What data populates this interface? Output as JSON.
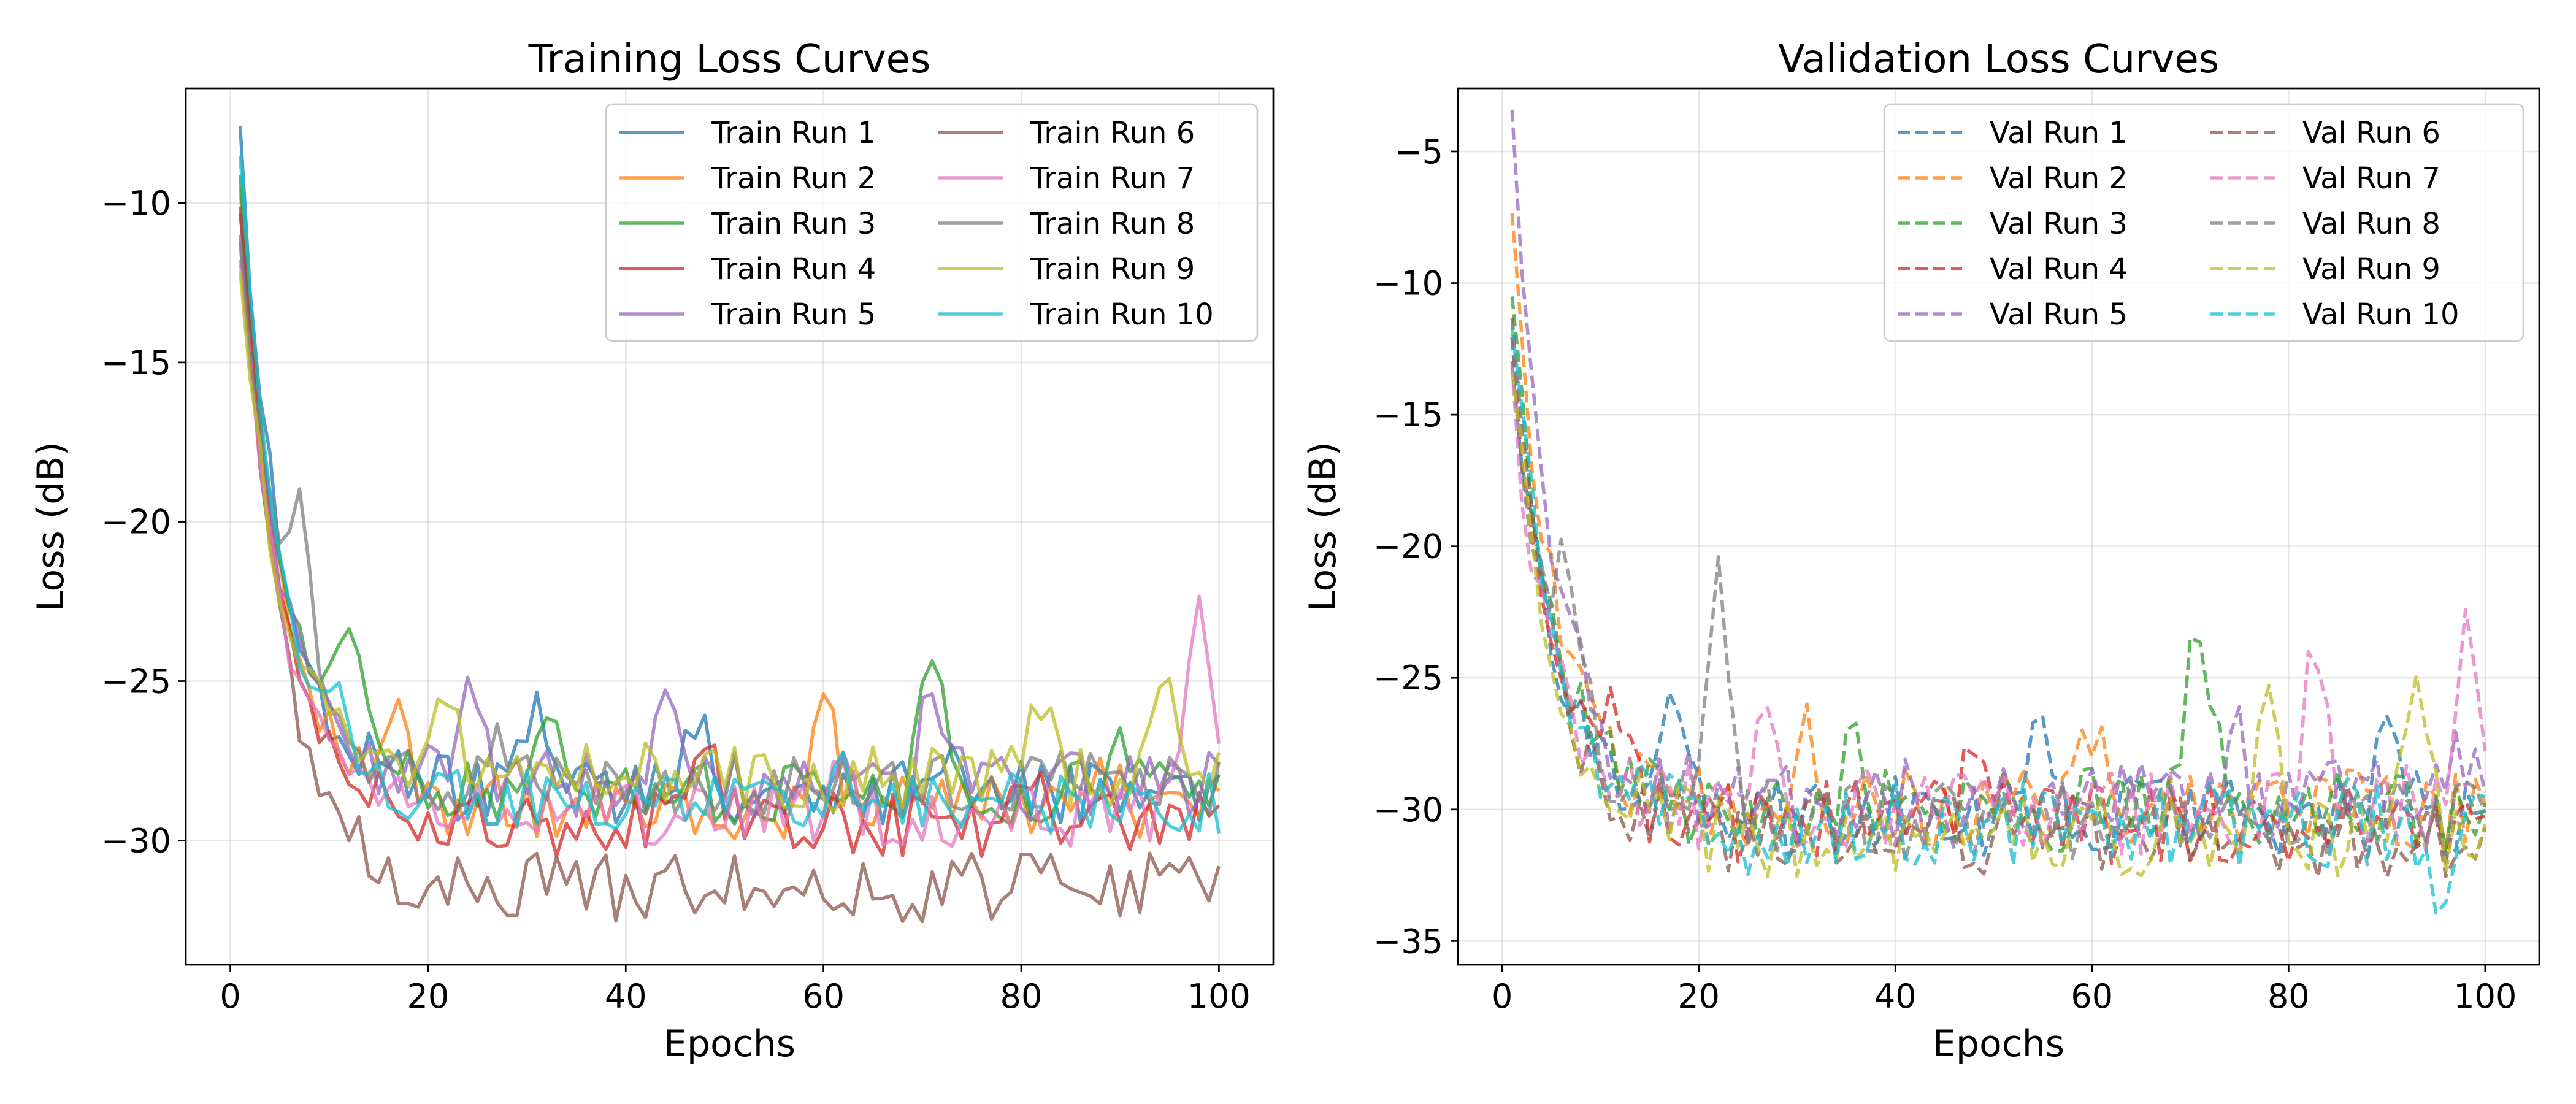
{
  "chart_data": [
    {
      "type": "line",
      "title": "Training Loss Curves",
      "xlabel": "Epochs",
      "ylabel": "Loss (dB)",
      "xlim": [
        -4.5,
        105.5
      ],
      "ylim": [
        -33.9,
        -6.4
      ],
      "xticks": [
        0,
        20,
        40,
        60,
        80,
        100
      ],
      "yticks": [
        -30,
        -25,
        -20,
        -15,
        -10
      ],
      "xtick_labels": [
        "0",
        "20",
        "40",
        "60",
        "80",
        "100"
      ],
      "ytick_labels": [
        "−30",
        "−25",
        "−20",
        "−15",
        "−10"
      ],
      "grid": true,
      "legend_location": "upper right",
      "legend_columns": 2,
      "line_style": "solid",
      "series": [
        {
          "name": "Train Run 1",
          "color": "#1f77b4",
          "start": -8,
          "end": -28.5,
          "noise": 1.0,
          "bumps": [
            [
              31,
              2.5
            ],
            [
              47,
              2.0
            ],
            [
              73,
              2.0
            ]
          ]
        },
        {
          "name": "Train Run 2",
          "color": "#ff7f0e",
          "start": -10,
          "end": -29.0,
          "noise": 1.0,
          "bumps": [
            [
              17,
              2.5
            ],
            [
              60,
              3.5
            ],
            [
              88,
              1.5
            ]
          ]
        },
        {
          "name": "Train Run 3",
          "color": "#2ca02c",
          "start": -9.7,
          "end": -28.5,
          "noise": 1.0,
          "bumps": [
            [
              12,
              4.0
            ],
            [
              32,
              3.0
            ],
            [
              71,
              4.0
            ],
            [
              90,
              1.5
            ]
          ]
        },
        {
          "name": "Train Run 4",
          "color": "#d62728",
          "start": -9.8,
          "end": -29.5,
          "noise": 1.0,
          "bumps": [
            [
              48,
              2.5
            ],
            [
              81,
              2.0
            ]
          ]
        },
        {
          "name": "Train Run 5",
          "color": "#9467bd",
          "start": -10.5,
          "end": -28.3,
          "noise": 1.1,
          "bumps": [
            [
              24,
              3.0
            ],
            [
              44,
              3.5
            ],
            [
              71,
              2.5
            ]
          ]
        },
        {
          "name": "Train Run 6",
          "color": "#8c564b",
          "start": -9.7,
          "end": -31.5,
          "noise": 1.1,
          "bumps": []
        },
        {
          "name": "Train Run 7",
          "color": "#e377c2",
          "start": -11.5,
          "end": -29.2,
          "noise": 1.0,
          "bumps": [
            [
              98,
              6.0
            ],
            [
              62,
              1.5
            ]
          ]
        },
        {
          "name": "Train Run 8",
          "color": "#7f7f7f",
          "start": -11.0,
          "end": -28.2,
          "noise": 1.0,
          "bumps": [
            [
              7,
              4.5
            ],
            [
              27,
              2.0
            ]
          ]
        },
        {
          "name": "Train Run 9",
          "color": "#bcbd22",
          "start": -12.0,
          "end": -28.0,
          "noise": 1.1,
          "bumps": [
            [
              22,
              2.5
            ],
            [
              82,
              2.0
            ],
            [
              94,
              3.0
            ]
          ]
        },
        {
          "name": "Train Run 10",
          "color": "#17becf",
          "start": -8.5,
          "end": -28.8,
          "noise": 1.0,
          "bumps": [
            [
              10,
              1.5
            ],
            [
              62,
              1.0
            ]
          ]
        }
      ]
    },
    {
      "type": "line",
      "title": "Validation Loss Curves",
      "xlabel": "Epochs",
      "ylabel": "Loss (dB)",
      "xlim": [
        -4.5,
        105.5
      ],
      "ylim": [
        -35.9,
        -2.6
      ],
      "xticks": [
        0,
        20,
        40,
        60,
        80,
        100
      ],
      "yticks": [
        -35,
        -30,
        -25,
        -20,
        -15,
        -10,
        -5
      ],
      "xtick_labels": [
        "0",
        "20",
        "40",
        "60",
        "80",
        "100"
      ],
      "ytick_labels": [
        "−35",
        "−30",
        "−25",
        "−20",
        "−15",
        "−10",
        "−5"
      ],
      "grid": true,
      "legend_location": "upper right",
      "legend_columns": 2,
      "line_style": "dashed",
      "series": [
        {
          "name": "Val Run 1",
          "color": "#1f77b4",
          "start": -13.0,
          "end": -30.2,
          "noise": 1.6,
          "bumps": [
            [
              18,
              5.0
            ],
            [
              90,
              5.0
            ],
            [
              55,
              3.0
            ]
          ]
        },
        {
          "name": "Val Run 2",
          "color": "#ff7f0e",
          "start": -7.5,
          "end": -30.0,
          "noise": 1.6,
          "bumps": [
            [
              31,
              2.5
            ],
            [
              60,
              3.5
            ]
          ]
        },
        {
          "name": "Val Run 3",
          "color": "#2ca02c",
          "start": -10.8,
          "end": -30.0,
          "noise": 1.6,
          "bumps": [
            [
              71,
              7.0
            ],
            [
              36,
              2.5
            ]
          ]
        },
        {
          "name": "Val Run 4",
          "color": "#d62728",
          "start": -12.5,
          "end": -30.5,
          "noise": 1.6,
          "bumps": [
            [
              48,
              3.5
            ],
            [
              12,
              3.0
            ]
          ]
        },
        {
          "name": "Val Run 5",
          "color": "#9467bd",
          "start": -4.0,
          "end": -29.8,
          "noise": 1.7,
          "bumps": [
            [
              97,
              3.0
            ],
            [
              75,
              2.5
            ]
          ]
        },
        {
          "name": "Val Run 6",
          "color": "#8c564b",
          "start": -12.0,
          "end": -31.0,
          "noise": 1.6,
          "bumps": []
        },
        {
          "name": "Val Run 7",
          "color": "#e377c2",
          "start": -14.0,
          "end": -30.0,
          "noise": 1.7,
          "bumps": [
            [
              98,
              7.0
            ],
            [
              83,
              6.0
            ],
            [
              27,
              2.5
            ]
          ]
        },
        {
          "name": "Val Run 8",
          "color": "#7f7f7f",
          "start": -13.0,
          "end": -30.5,
          "noise": 1.6,
          "bumps": [
            [
              7,
              6.0
            ],
            [
              22,
              9.0
            ]
          ]
        },
        {
          "name": "Val Run 9",
          "color": "#bcbd22",
          "start": -12.5,
          "end": -31.0,
          "noise": 1.7,
          "bumps": [
            [
              78,
              5.0
            ],
            [
              93,
              5.5
            ]
          ]
        },
        {
          "name": "Val Run 10",
          "color": "#17becf",
          "start": -11.0,
          "end": -30.5,
          "noise": 1.7,
          "bumps": [
            [
              27,
              -2.0
            ],
            [
              96,
              -2.5
            ]
          ]
        }
      ]
    }
  ]
}
